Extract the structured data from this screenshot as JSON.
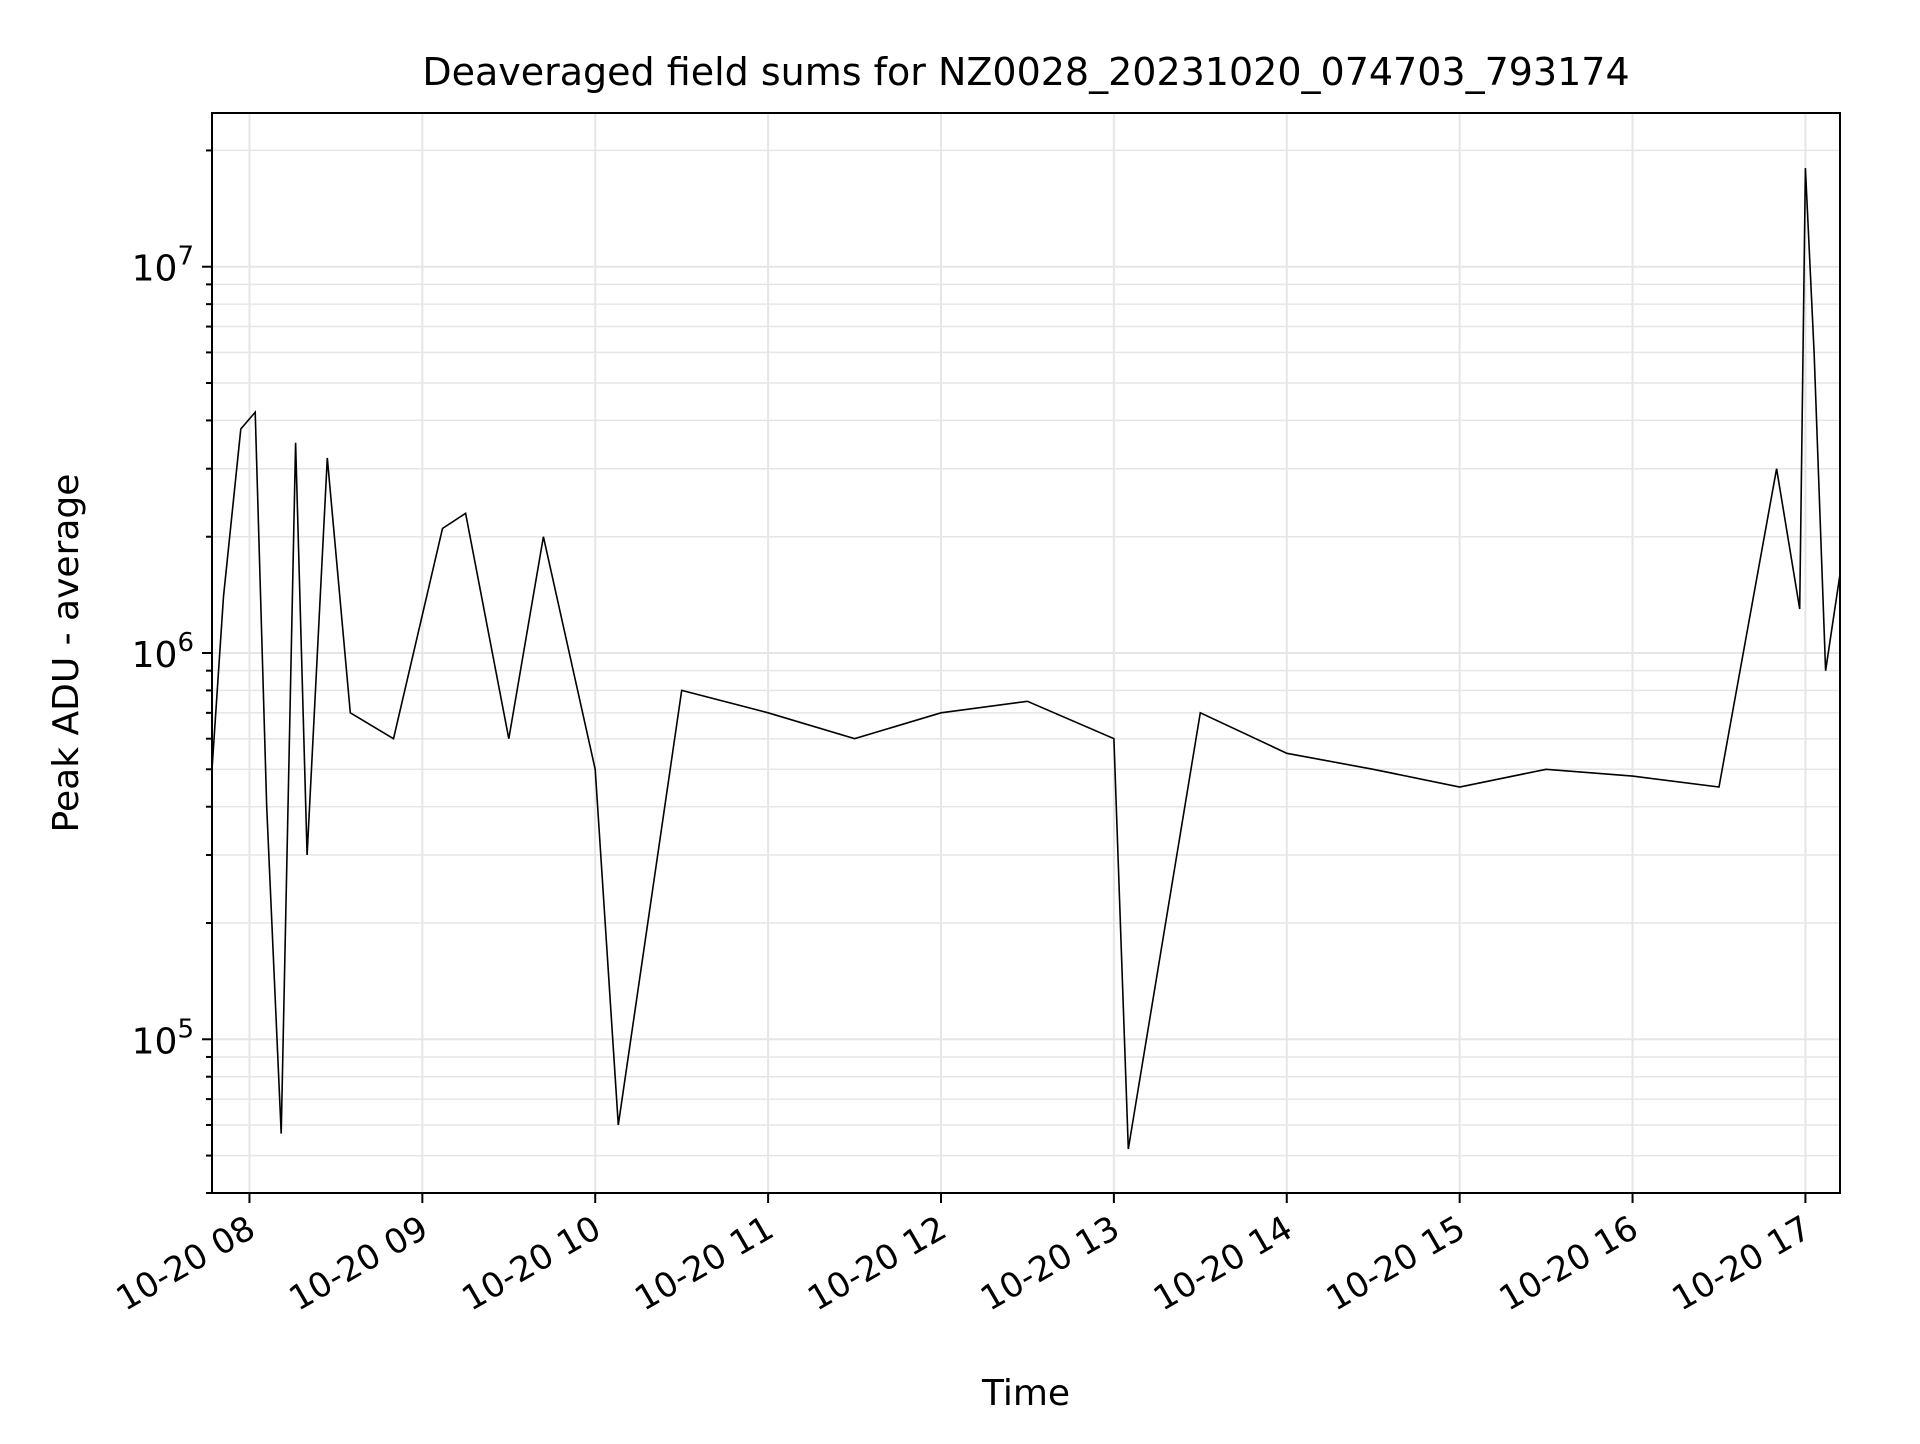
{
  "chart_data": {
    "type": "line",
    "title": "Deaveraged field sums for NZ0028_20231020_074703_793174",
    "xlabel": "Time",
    "ylabel": "Peak ADU - average",
    "x_ticks": [
      "10-20 08",
      "10-20 09",
      "10-20 10",
      "10-20 11",
      "10-20 12",
      "10-20 13",
      "10-20 14",
      "10-20 15",
      "10-20 16",
      "10-20 17"
    ],
    "y_ticks": [
      {
        "label_base": "10",
        "label_exp": "5",
        "value": 100000
      },
      {
        "label_base": "10",
        "label_exp": "6",
        "value": 1000000
      },
      {
        "label_base": "10",
        "label_exp": "7",
        "value": 10000000
      }
    ],
    "x_range": [
      "2023-10-20 07:47",
      "2023-10-20 17:12"
    ],
    "y_range": [
      40000,
      25000000
    ],
    "y_scale": "log",
    "grid": true,
    "line_color": "#000000",
    "series": [
      {
        "x": [
          "2023-10-20 07:47",
          "2023-10-20 07:51",
          "2023-10-20 07:57",
          "2023-10-20 08:02",
          "2023-10-20 08:06",
          "2023-10-20 08:11",
          "2023-10-20 08:16",
          "2023-10-20 08:20",
          "2023-10-20 08:27",
          "2023-10-20 08:35",
          "2023-10-20 08:50",
          "2023-10-20 09:07",
          "2023-10-20 09:15",
          "2023-10-20 09:30",
          "2023-10-20 09:42",
          "2023-10-20 10:00",
          "2023-10-20 10:08",
          "2023-10-20 10:30",
          "2023-10-20 11:00",
          "2023-10-20 11:30",
          "2023-10-20 12:00",
          "2023-10-20 12:30",
          "2023-10-20 13:00",
          "2023-10-20 13:05",
          "2023-10-20 13:30",
          "2023-10-20 14:00",
          "2023-10-20 14:30",
          "2023-10-20 15:00",
          "2023-10-20 15:30",
          "2023-10-20 16:00",
          "2023-10-20 16:30",
          "2023-10-20 16:50",
          "2023-10-20 16:58",
          "2023-10-20 17:00",
          "2023-10-20 17:03",
          "2023-10-20 17:07",
          "2023-10-20 17:12"
        ],
        "y": [
          500000,
          1400000,
          3800000,
          4200000,
          400000,
          57000,
          3500000,
          300000,
          3200000,
          700000,
          600000,
          2100000,
          2300000,
          600000,
          2000000,
          500000,
          60000,
          800000,
          700000,
          600000,
          700000,
          750000,
          600000,
          52000,
          700000,
          550000,
          500000,
          450000,
          500000,
          480000,
          450000,
          3000000,
          1300000,
          18000000,
          6000000,
          900000,
          1600000
        ]
      }
    ]
  }
}
